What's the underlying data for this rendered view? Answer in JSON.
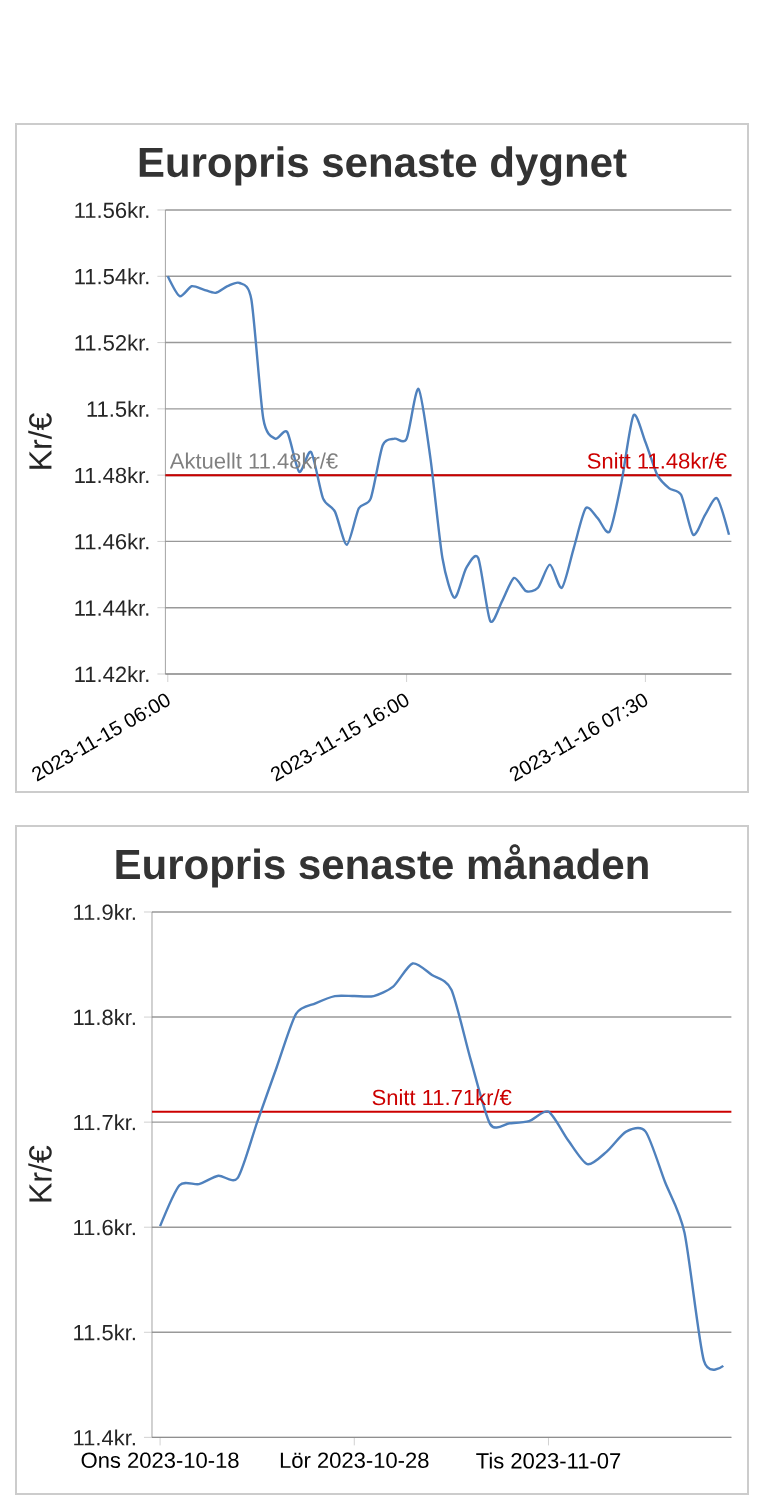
{
  "chart_data": [
    {
      "type": "line",
      "title": "Europris senaste dygnet",
      "ylabel": "Kr/€",
      "categories": [
        "2023-11-15 06:00",
        null,
        null,
        null,
        null,
        null,
        null,
        null,
        null,
        null,
        null,
        null,
        null,
        null,
        null,
        null,
        null,
        null,
        null,
        null,
        "2023-11-15 16:00",
        null,
        null,
        null,
        null,
        null,
        null,
        null,
        null,
        null,
        null,
        null,
        null,
        null,
        null,
        null,
        null,
        null,
        null,
        null,
        "2023-11-16 07:30",
        null,
        null,
        null,
        null,
        null,
        null,
        null
      ],
      "values": [
        11.54,
        11.534,
        11.537,
        11.536,
        11.535,
        11.537,
        11.538,
        11.533,
        11.497,
        11.491,
        11.493,
        11.481,
        11.487,
        11.473,
        11.469,
        11.459,
        11.47,
        11.473,
        11.489,
        11.491,
        11.491,
        11.506,
        11.485,
        11.455,
        11.443,
        11.452,
        11.455,
        11.436,
        11.442,
        11.449,
        11.445,
        11.446,
        11.453,
        11.446,
        11.458,
        11.47,
        11.467,
        11.463,
        11.478,
        11.498,
        11.49,
        11.48,
        11.476,
        11.474,
        11.462,
        11.468,
        11.473,
        11.462
      ],
      "color": "#4f81bd",
      "ylim": [
        11.42,
        11.56
      ],
      "yticks": [
        {
          "value": 11.42,
          "label": "11.42kr."
        },
        {
          "value": 11.44,
          "label": "11.44kr."
        },
        {
          "value": 11.46,
          "label": "11.46kr."
        },
        {
          "value": 11.48,
          "label": "11.48kr."
        },
        {
          "value": 11.5,
          "label": "11.5kr."
        },
        {
          "value": 11.52,
          "label": "11.52kr."
        },
        {
          "value": 11.54,
          "label": "11.54kr."
        },
        {
          "value": 11.56,
          "label": "11.56kr."
        }
      ],
      "grid": "y",
      "ref_lines": [
        {
          "axis": "y",
          "value": 11.48,
          "label": "Aktuellt 11.48kr/€",
          "color": "#808080"
        },
        {
          "axis": "y",
          "value": 11.48,
          "label": "Snitt 11.48kr/€",
          "color": "#cc0000"
        }
      ]
    },
    {
      "type": "line",
      "title": "Europris senaste månaden",
      "ylabel": "Kr/€",
      "x": [
        "2023-10-18",
        "2023-10-19",
        "2023-10-20",
        "2023-10-21",
        "2023-10-22",
        "2023-10-23",
        "2023-10-24",
        "2023-10-25",
        "2023-10-26",
        "2023-10-27",
        "2023-10-28",
        "2023-10-29",
        "2023-10-30",
        "2023-10-31",
        "2023-11-01",
        "2023-11-02",
        "2023-11-03",
        "2023-11-04",
        "2023-11-05",
        "2023-11-06",
        "2023-11-07",
        "2023-11-08",
        "2023-11-09",
        "2023-11-10",
        "2023-11-11",
        "2023-11-12",
        "2023-11-13",
        "2023-11-14",
        "2023-11-15",
        "2023-11-16"
      ],
      "values": [
        11.601,
        11.64,
        11.641,
        11.649,
        11.647,
        11.7,
        11.752,
        11.803,
        11.813,
        11.82,
        11.82,
        11.82,
        11.829,
        11.851,
        11.84,
        11.826,
        11.759,
        11.698,
        11.699,
        11.701,
        11.71,
        11.683,
        11.66,
        11.672,
        11.691,
        11.691,
        11.643,
        11.595,
        11.473,
        11.468
      ],
      "color": "#4f81bd",
      "xlim": [
        "2023-10-17T14:00",
        "2023-11-16T10:00"
      ],
      "xticks": [
        {
          "value": "2023-10-18",
          "label": "Ons 2023-10-18"
        },
        {
          "value": "2023-10-28",
          "label": "Lör 2023-10-28"
        },
        {
          "value": "2023-11-07",
          "label": "Tis 2023-11-07"
        }
      ],
      "ylim": [
        11.4,
        11.9
      ],
      "yticks": [
        {
          "value": 11.4,
          "label": "11.4kr."
        },
        {
          "value": 11.5,
          "label": "11.5kr."
        },
        {
          "value": 11.6,
          "label": "11.6kr."
        },
        {
          "value": 11.7,
          "label": "11.7kr."
        },
        {
          "value": 11.8,
          "label": "11.8kr."
        },
        {
          "value": 11.9,
          "label": "11.9kr."
        }
      ],
      "grid": "y",
      "ref_lines": [
        {
          "axis": "y",
          "value": 11.71,
          "label": "Snitt 11.71kr/€",
          "color": "#cc0000"
        }
      ]
    }
  ]
}
